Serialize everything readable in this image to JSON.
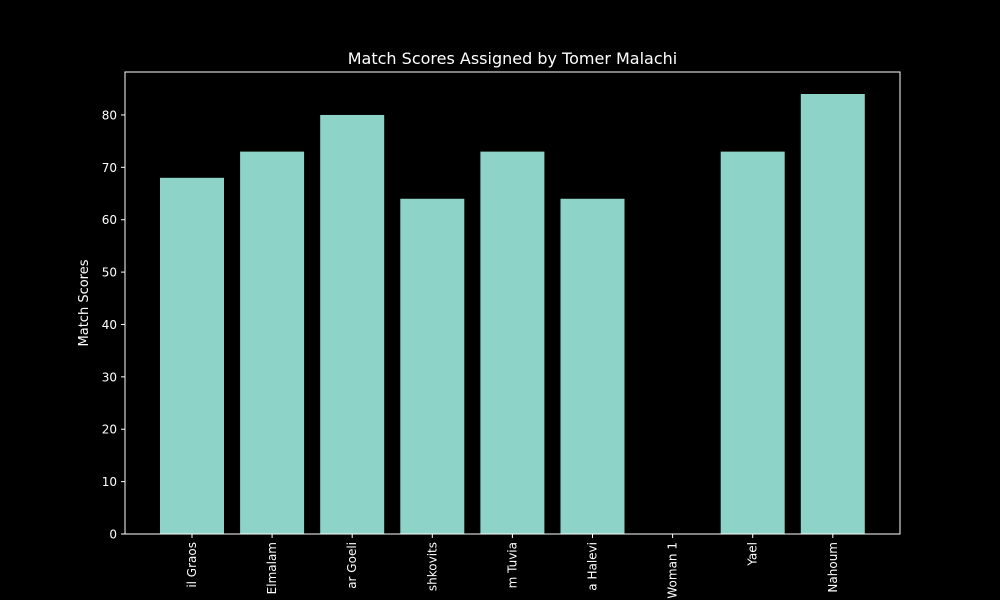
{
  "chart_data": {
    "type": "bar",
    "title": "Match Scores Assigned by Tomer Malachi",
    "xlabel": "",
    "ylabel": "Match Scores",
    "categories": [
      "il Graos",
      "Elmalam",
      "ar Goeli",
      "shkovits",
      "m Tuvia",
      "a Halevi",
      "Woman 1",
      "Yael",
      "Nahoum"
    ],
    "values": [
      68,
      73,
      80,
      64,
      73,
      64,
      0,
      73,
      84
    ],
    "ylim": [
      0,
      88.2
    ],
    "yticks": [
      0,
      10,
      20,
      30,
      40,
      50,
      60,
      70,
      80
    ],
    "grid": false,
    "bar_color": "#8dd3c7",
    "background_color": "#000000",
    "axis_color": "#ffffff"
  }
}
